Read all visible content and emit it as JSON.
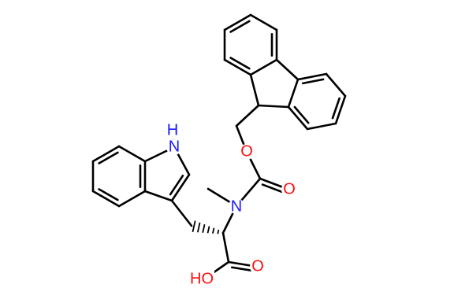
{
  "atoms": {
    "indole_h": "H",
    "indole_n": "N",
    "ester_o": "O",
    "carbonyl_o": "O",
    "amine_n": "N",
    "acid_o": "O",
    "hydroxyl": "HO"
  }
}
